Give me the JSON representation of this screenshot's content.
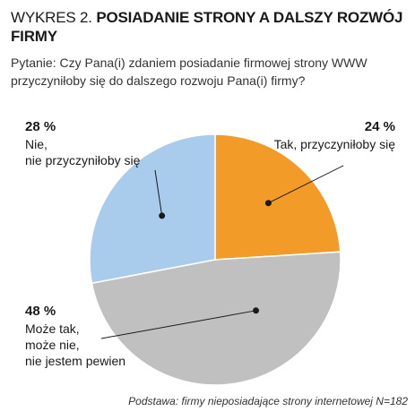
{
  "header": {
    "title_prefix": "WYKRES 2.",
    "title_main": "POSIADANIE STRONY A DALSZY ROZWÓJ FIRMY",
    "question": "Pytanie: Czy Pana(i) zdaniem posiadanie firmowej strony WWW przyczyniłoby się do dalszego rozwoju Pana(i) firmy?"
  },
  "chart_data": {
    "type": "pie",
    "slices": [
      {
        "label": "Tak, przyczyniłoby się",
        "value": 24,
        "value_label": "24 %",
        "color": "#f39b29"
      },
      {
        "label": "Może tak,\nmoże nie,\nnie jestem pewien",
        "value": 48,
        "value_label": "48 %",
        "color": "#c0c0c0"
      },
      {
        "label": "Nie,\nnie przyczyniłoby się",
        "value": 28,
        "value_label": "28 %",
        "color": "#a9cbec"
      }
    ],
    "start": "12 o'clock",
    "direction": "clockwise"
  },
  "footer": {
    "source": "Podstawa: firmy nieposiadające strony internetowej N=182"
  }
}
